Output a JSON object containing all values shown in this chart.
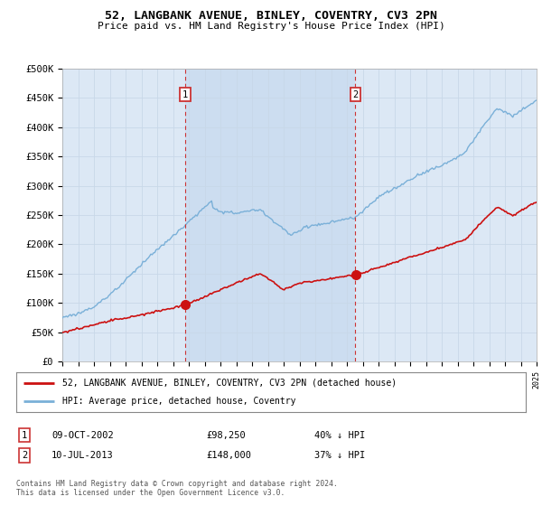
{
  "title": "52, LANGBANK AVENUE, BINLEY, COVENTRY, CV3 2PN",
  "subtitle": "Price paid vs. HM Land Registry's House Price Index (HPI)",
  "background_color": "#dce8f5",
  "shade_color": "#ccddf0",
  "hpi_color": "#7ab0d8",
  "price_color": "#cc1111",
  "ylim": [
    0,
    500000
  ],
  "yticks": [
    0,
    50000,
    100000,
    150000,
    200000,
    250000,
    300000,
    350000,
    400000,
    450000,
    500000
  ],
  "ytick_labels": [
    "£0",
    "£50K",
    "£100K",
    "£150K",
    "£200K",
    "£250K",
    "£300K",
    "£350K",
    "£400K",
    "£450K",
    "£500K"
  ],
  "sale1_date": 2002.78,
  "sale1_price": 98250,
  "sale1_label": "1",
  "sale2_date": 2013.53,
  "sale2_price": 148000,
  "sale2_label": "2",
  "legend_line1": "52, LANGBANK AVENUE, BINLEY, COVENTRY, CV3 2PN (detached house)",
  "legend_line2": "HPI: Average price, detached house, Coventry",
  "footer": "Contains HM Land Registry data © Crown copyright and database right 2024.\nThis data is licensed under the Open Government Licence v3.0.",
  "xmin": 1995,
  "xmax": 2025
}
